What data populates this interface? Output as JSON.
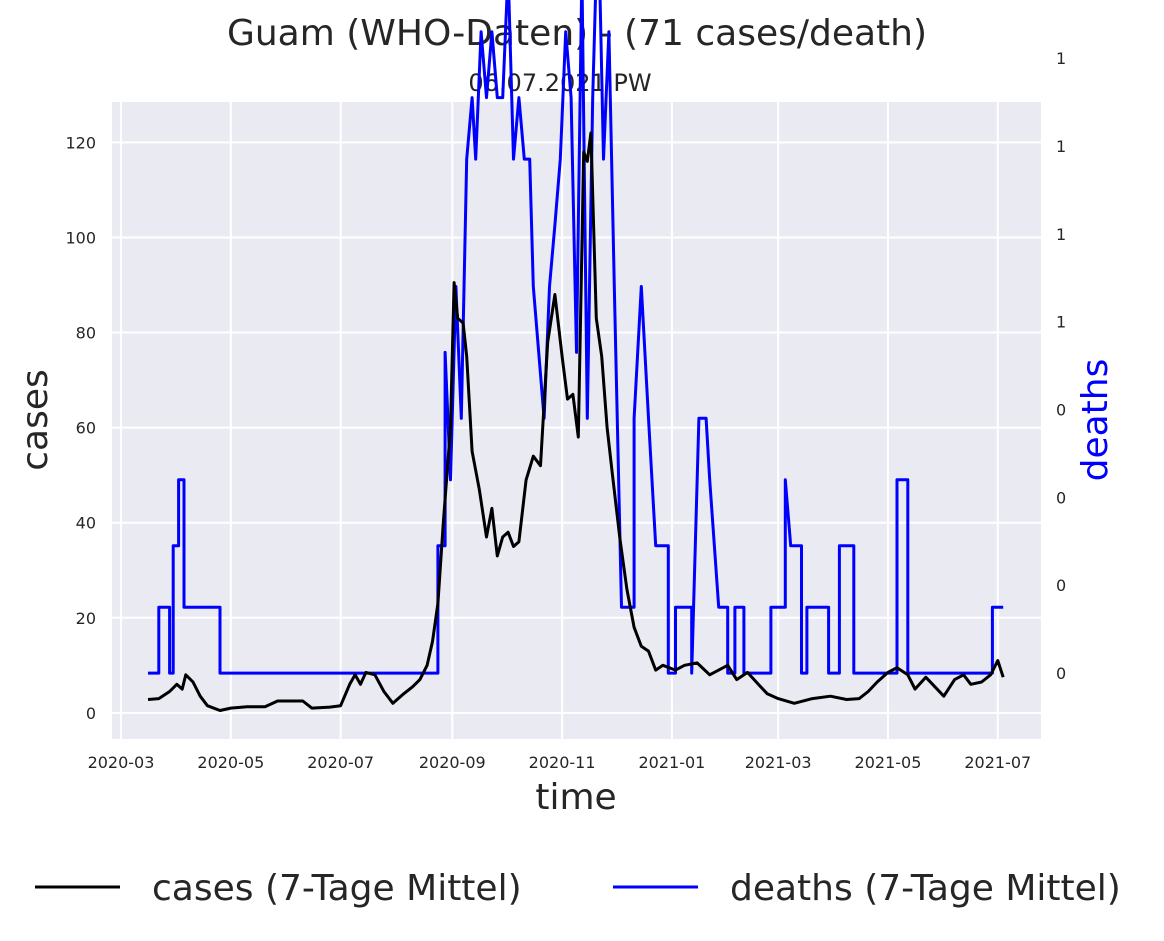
{
  "chart_data": {
    "type": "line",
    "title": "Guam (WHO-Daten) - (71 cases/death)",
    "subtitle": "06.07.2021 PW",
    "xlabel": "time",
    "ylabel": "cases",
    "ylabel_right": "deaths",
    "x_ticks": [
      "2020-03",
      "2020-05",
      "2020-07",
      "2020-09",
      "2020-11",
      "2021-01",
      "2021-03",
      "2021-05",
      "2021-07"
    ],
    "y_ticks": [
      0,
      20,
      40,
      60,
      80,
      100,
      120
    ],
    "y_right_ticks": [
      "0",
      "0",
      "0",
      "0",
      "1",
      "1",
      "1",
      "1"
    ],
    "xlim": [
      "2020-02-25",
      "2021-07-25"
    ],
    "ylim": [
      -5.5,
      128.5
    ],
    "y_right_lim": [
      -0.15,
      1.3
    ],
    "grid": true,
    "legend_position": "bottom",
    "series": [
      {
        "name": "cases (7-Tage Mittel)",
        "color": "#000000",
        "axis": "left",
        "points": [
          [
            "2020-03-16",
            2.8
          ],
          [
            "2020-03-22",
            3.0
          ],
          [
            "2020-03-28",
            4.5
          ],
          [
            "2020-04-01",
            6.0
          ],
          [
            "2020-04-04",
            5.0
          ],
          [
            "2020-04-06",
            8.0
          ],
          [
            "2020-04-10",
            6.5
          ],
          [
            "2020-04-14",
            3.5
          ],
          [
            "2020-04-18",
            1.5
          ],
          [
            "2020-04-25",
            0.5
          ],
          [
            "2020-05-01",
            1.0
          ],
          [
            "2020-05-10",
            1.3
          ],
          [
            "2020-05-20",
            1.3
          ],
          [
            "2020-05-27",
            2.5
          ],
          [
            "2020-06-10",
            2.5
          ],
          [
            "2020-06-15",
            1.0
          ],
          [
            "2020-06-25",
            1.2
          ],
          [
            "2020-07-01",
            1.5
          ],
          [
            "2020-07-06",
            6.0
          ],
          [
            "2020-07-09",
            8.0
          ],
          [
            "2020-07-12",
            6.0
          ],
          [
            "2020-07-15",
            8.5
          ],
          [
            "2020-07-20",
            8.0
          ],
          [
            "2020-07-25",
            4.5
          ],
          [
            "2020-07-30",
            2.0
          ],
          [
            "2020-08-05",
            4.0
          ],
          [
            "2020-08-10",
            5.5
          ],
          [
            "2020-08-14",
            7.0
          ],
          [
            "2020-08-18",
            10.0
          ],
          [
            "2020-08-21",
            15.0
          ],
          [
            "2020-08-24",
            23.0
          ],
          [
            "2020-08-27",
            40.0
          ],
          [
            "2020-08-31",
            60.0
          ],
          [
            "2020-09-02",
            90.5
          ],
          [
            "2020-09-04",
            83.0
          ],
          [
            "2020-09-07",
            82.0
          ],
          [
            "2020-09-09",
            75.0
          ],
          [
            "2020-09-12",
            55.0
          ],
          [
            "2020-09-16",
            47.0
          ],
          [
            "2020-09-20",
            37.0
          ],
          [
            "2020-09-23",
            43.0
          ],
          [
            "2020-09-26",
            33.0
          ],
          [
            "2020-09-29",
            37.0
          ],
          [
            "2020-10-02",
            38.0
          ],
          [
            "2020-10-05",
            35.0
          ],
          [
            "2020-10-08",
            36.0
          ],
          [
            "2020-10-12",
            49.0
          ],
          [
            "2020-10-16",
            54.0
          ],
          [
            "2020-10-20",
            52.0
          ],
          [
            "2020-10-24",
            78.0
          ],
          [
            "2020-10-28",
            88.0
          ],
          [
            "2020-11-01",
            75.0
          ],
          [
            "2020-11-04",
            66.0
          ],
          [
            "2020-11-07",
            67.0
          ],
          [
            "2020-11-10",
            58.0
          ],
          [
            "2020-11-13",
            118.0
          ],
          [
            "2020-11-15",
            116.0
          ],
          [
            "2020-11-17",
            122.0
          ],
          [
            "2020-11-20",
            83.0
          ],
          [
            "2020-11-23",
            75.0
          ],
          [
            "2020-11-26",
            60.0
          ],
          [
            "2020-11-29",
            50.0
          ],
          [
            "2020-12-03",
            37.0
          ],
          [
            "2020-12-07",
            26.0
          ],
          [
            "2020-12-11",
            18.0
          ],
          [
            "2020-12-15",
            14.0
          ],
          [
            "2020-12-19",
            13.0
          ],
          [
            "2020-12-23",
            9.0
          ],
          [
            "2020-12-27",
            10.0
          ],
          [
            "2021-01-03",
            9.0
          ],
          [
            "2021-01-08",
            10.0
          ],
          [
            "2021-01-15",
            10.5
          ],
          [
            "2021-01-22",
            8.0
          ],
          [
            "2021-01-27",
            9.0
          ],
          [
            "2021-02-01",
            10.0
          ],
          [
            "2021-02-06",
            7.0
          ],
          [
            "2021-02-12",
            8.5
          ],
          [
            "2021-02-18",
            6.0
          ],
          [
            "2021-02-23",
            4.0
          ],
          [
            "2021-03-01",
            3.0
          ],
          [
            "2021-03-10",
            2.0
          ],
          [
            "2021-03-20",
            3.0
          ],
          [
            "2021-03-30",
            3.5
          ],
          [
            "2021-04-08",
            2.8
          ],
          [
            "2021-04-15",
            3.0
          ],
          [
            "2021-04-20",
            4.5
          ],
          [
            "2021-04-25",
            6.5
          ],
          [
            "2021-05-01",
            8.5
          ],
          [
            "2021-05-06",
            9.5
          ],
          [
            "2021-05-12",
            8.0
          ],
          [
            "2021-05-16",
            5.0
          ],
          [
            "2021-05-22",
            7.5
          ],
          [
            "2021-05-27",
            5.5
          ],
          [
            "2021-06-01",
            3.5
          ],
          [
            "2021-06-07",
            7.0
          ],
          [
            "2021-06-12",
            8.0
          ],
          [
            "2021-06-16",
            6.0
          ],
          [
            "2021-06-22",
            6.5
          ],
          [
            "2021-06-27",
            8.0
          ],
          [
            "2021-07-01",
            11.0
          ],
          [
            "2021-07-04",
            7.5
          ]
        ]
      },
      {
        "name": "deaths (7-Tage Mittel)",
        "color": "#0000ff",
        "axis": "right",
        "points": [
          [
            "2020-03-16",
            0.0
          ],
          [
            "2020-03-22",
            0.0
          ],
          [
            "2020-03-22",
            0.15
          ],
          [
            "2020-03-28",
            0.15
          ],
          [
            "2020-03-28",
            0.0
          ],
          [
            "2020-03-30",
            0.0
          ],
          [
            "2020-03-30",
            0.29
          ],
          [
            "2020-04-02",
            0.29
          ],
          [
            "2020-04-02",
            0.44
          ],
          [
            "2020-04-05",
            0.44
          ],
          [
            "2020-04-05",
            0.15
          ],
          [
            "2020-04-25",
            0.15
          ],
          [
            "2020-04-25",
            0.0
          ],
          [
            "2020-08-24",
            0.0
          ],
          [
            "2020-08-24",
            0.29
          ],
          [
            "2020-08-28",
            0.29
          ],
          [
            "2020-08-28",
            0.73
          ],
          [
            "2020-08-31",
            0.44
          ],
          [
            "2020-09-03",
            0.88
          ],
          [
            "2020-09-06",
            0.58
          ],
          [
            "2020-09-09",
            1.17
          ],
          [
            "2020-09-12",
            1.31
          ],
          [
            "2020-09-14",
            1.17
          ],
          [
            "2020-09-17",
            1.46
          ],
          [
            "2020-09-20",
            1.31
          ],
          [
            "2020-09-23",
            1.46
          ],
          [
            "2020-09-26",
            1.31
          ],
          [
            "2020-09-29",
            1.31
          ],
          [
            "2020-10-02",
            1.6
          ],
          [
            "2020-10-05",
            1.17
          ],
          [
            "2020-10-08",
            1.31
          ],
          [
            "2020-10-11",
            1.17
          ],
          [
            "2020-10-14",
            1.17
          ],
          [
            "2020-10-16",
            0.88
          ],
          [
            "2020-10-19",
            0.73
          ],
          [
            "2020-10-22",
            0.58
          ],
          [
            "2020-10-25",
            0.88
          ],
          [
            "2020-10-28",
            1.02
          ],
          [
            "2020-10-31",
            1.17
          ],
          [
            "2020-11-03",
            1.46
          ],
          [
            "2020-11-06",
            1.31
          ],
          [
            "2020-11-09",
            0.73
          ],
          [
            "2020-11-12",
            1.6
          ],
          [
            "2020-11-15",
            0.58
          ],
          [
            "2020-11-18",
            1.31
          ],
          [
            "2020-11-21",
            1.75
          ],
          [
            "2020-11-24",
            1.17
          ],
          [
            "2020-11-27",
            1.46
          ],
          [
            "2020-11-30",
            0.88
          ],
          [
            "2020-12-04",
            0.15
          ],
          [
            "2020-12-11",
            0.15
          ],
          [
            "2020-12-11",
            0.58
          ],
          [
            "2020-12-15",
            0.88
          ],
          [
            "2020-12-19",
            0.58
          ],
          [
            "2020-12-23",
            0.29
          ],
          [
            "2020-12-30",
            0.29
          ],
          [
            "2020-12-30",
            0.0
          ],
          [
            "2021-01-03",
            0.0
          ],
          [
            "2021-01-03",
            0.15
          ],
          [
            "2021-01-12",
            0.15
          ],
          [
            "2021-01-12",
            0.0
          ],
          [
            "2021-01-16",
            0.58
          ],
          [
            "2021-01-20",
            0.58
          ],
          [
            "2021-01-22",
            0.44
          ],
          [
            "2021-01-27",
            0.15
          ],
          [
            "2021-02-01",
            0.15
          ],
          [
            "2021-02-01",
            0.0
          ],
          [
            "2021-02-05",
            0.0
          ],
          [
            "2021-02-05",
            0.15
          ],
          [
            "2021-02-10",
            0.15
          ],
          [
            "2021-02-10",
            0.0
          ],
          [
            "2021-02-25",
            0.0
          ],
          [
            "2021-02-25",
            0.15
          ],
          [
            "2021-03-05",
            0.15
          ],
          [
            "2021-03-05",
            0.44
          ],
          [
            "2021-03-08",
            0.29
          ],
          [
            "2021-03-14",
            0.29
          ],
          [
            "2021-03-14",
            0.0
          ],
          [
            "2021-03-17",
            0.0
          ],
          [
            "2021-03-17",
            0.15
          ],
          [
            "2021-03-29",
            0.15
          ],
          [
            "2021-03-29",
            0.0
          ],
          [
            "2021-04-04",
            0.0
          ],
          [
            "2021-04-04",
            0.29
          ],
          [
            "2021-04-12",
            0.29
          ],
          [
            "2021-04-12",
            0.0
          ],
          [
            "2021-05-06",
            0.0
          ],
          [
            "2021-05-06",
            0.44
          ],
          [
            "2021-05-12",
            0.44
          ],
          [
            "2021-05-12",
            0.0
          ],
          [
            "2021-06-28",
            0.0
          ],
          [
            "2021-06-28",
            0.15
          ],
          [
            "2021-07-04",
            0.15
          ]
        ]
      }
    ]
  }
}
